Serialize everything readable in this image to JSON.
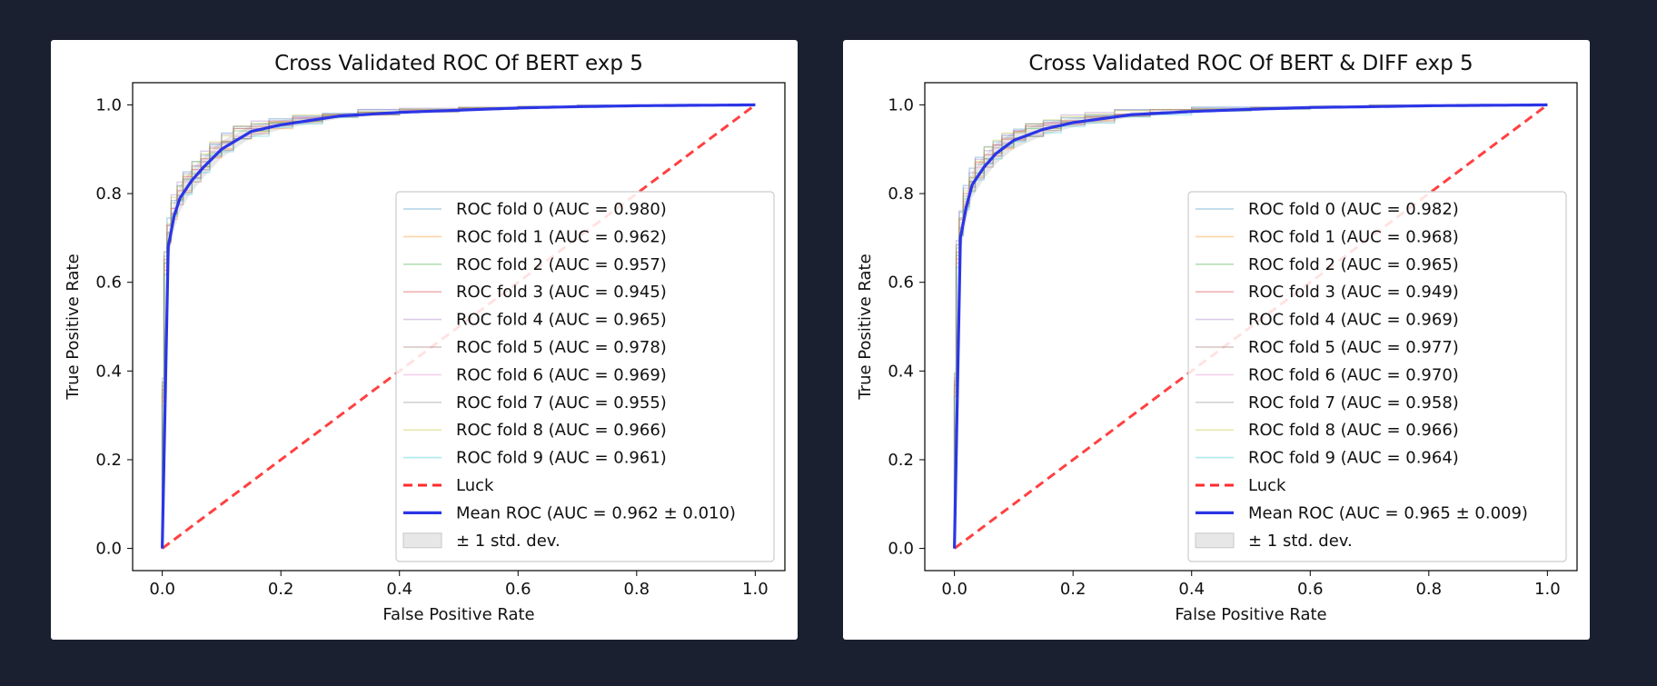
{
  "chart_data": [
    {
      "type": "line",
      "title": "Cross Validated ROC Of BERT exp 5",
      "xlabel": "False Positive Rate",
      "ylabel": "True Positive Rate",
      "xlim": [
        -0.05,
        1.05
      ],
      "ylim": [
        -0.05,
        1.05
      ],
      "xticks": [
        "0.0",
        "0.2",
        "0.4",
        "0.6",
        "0.8",
        "1.0"
      ],
      "yticks": [
        "0.0",
        "0.2",
        "0.4",
        "0.6",
        "0.8",
        "1.0"
      ],
      "legend_position": "lower-right",
      "grid": false,
      "series": [
        {
          "name": "ROC fold 0 (AUC = 0.980)",
          "color": "#1f77b4",
          "style": "fold"
        },
        {
          "name": "ROC fold 1 (AUC = 0.962)",
          "color": "#ff7f0e",
          "style": "fold"
        },
        {
          "name": "ROC fold 2 (AUC = 0.957)",
          "color": "#2ca02c",
          "style": "fold"
        },
        {
          "name": "ROC fold 3 (AUC = 0.945)",
          "color": "#d62728",
          "style": "fold"
        },
        {
          "name": "ROC fold 4 (AUC = 0.965)",
          "color": "#9467bd",
          "style": "fold"
        },
        {
          "name": "ROC fold 5 (AUC = 0.978)",
          "color": "#8c564b",
          "style": "fold"
        },
        {
          "name": "ROC fold 6 (AUC = 0.969)",
          "color": "#e377c2",
          "style": "fold"
        },
        {
          "name": "ROC fold 7 (AUC = 0.955)",
          "color": "#7f7f7f",
          "style": "fold"
        },
        {
          "name": "ROC fold 8 (AUC = 0.966)",
          "color": "#bcbd22",
          "style": "fold"
        },
        {
          "name": "ROC fold 9 (AUC = 0.961)",
          "color": "#17becf",
          "style": "fold"
        },
        {
          "name": "Luck",
          "color": "#ff2b2b",
          "style": "luck",
          "x": [
            0,
            1
          ],
          "y": [
            0,
            1
          ]
        },
        {
          "name": "Mean ROC (AUC = 0.962 ± 0.010)",
          "color": "#2b35e6",
          "style": "mean",
          "x": [
            0,
            0.005,
            0.01,
            0.02,
            0.03,
            0.05,
            0.07,
            0.1,
            0.15,
            0.2,
            0.3,
            0.4,
            0.5,
            0.6,
            0.7,
            0.8,
            0.9,
            1.0
          ],
          "y": [
            0,
            0.6,
            0.68,
            0.75,
            0.79,
            0.83,
            0.86,
            0.9,
            0.94,
            0.955,
            0.975,
            0.983,
            0.988,
            0.993,
            0.996,
            0.998,
            0.999,
            1.0
          ]
        },
        {
          "name": "± 1 std. dev.",
          "color": "#bbbbbb",
          "style": "band"
        }
      ]
    },
    {
      "type": "line",
      "title": "Cross Validated ROC Of BERT & DIFF exp 5",
      "xlabel": "False Positive Rate",
      "ylabel": "True Positive Rate",
      "xlim": [
        -0.05,
        1.05
      ],
      "ylim": [
        -0.05,
        1.05
      ],
      "xticks": [
        "0.0",
        "0.2",
        "0.4",
        "0.6",
        "0.8",
        "1.0"
      ],
      "yticks": [
        "0.0",
        "0.2",
        "0.4",
        "0.6",
        "0.8",
        "1.0"
      ],
      "legend_position": "lower-right",
      "grid": false,
      "series": [
        {
          "name": "ROC fold 0 (AUC = 0.982)",
          "color": "#1f77b4",
          "style": "fold"
        },
        {
          "name": "ROC fold 1 (AUC = 0.968)",
          "color": "#ff7f0e",
          "style": "fold"
        },
        {
          "name": "ROC fold 2 (AUC = 0.965)",
          "color": "#2ca02c",
          "style": "fold"
        },
        {
          "name": "ROC fold 3 (AUC = 0.949)",
          "color": "#d62728",
          "style": "fold"
        },
        {
          "name": "ROC fold 4 (AUC = 0.969)",
          "color": "#9467bd",
          "style": "fold"
        },
        {
          "name": "ROC fold 5 (AUC = 0.977)",
          "color": "#8c564b",
          "style": "fold"
        },
        {
          "name": "ROC fold 6 (AUC = 0.970)",
          "color": "#e377c2",
          "style": "fold"
        },
        {
          "name": "ROC fold 7 (AUC = 0.958)",
          "color": "#7f7f7f",
          "style": "fold"
        },
        {
          "name": "ROC fold 8 (AUC = 0.966)",
          "color": "#bcbd22",
          "style": "fold"
        },
        {
          "name": "ROC fold 9 (AUC = 0.964)",
          "color": "#17becf",
          "style": "fold"
        },
        {
          "name": "Luck",
          "color": "#ff2b2b",
          "style": "luck",
          "x": [
            0,
            1
          ],
          "y": [
            0,
            1
          ]
        },
        {
          "name": "Mean ROC (AUC = 0.965 ± 0.009)",
          "color": "#2b35e6",
          "style": "mean",
          "x": [
            0,
            0.005,
            0.01,
            0.02,
            0.03,
            0.05,
            0.07,
            0.1,
            0.15,
            0.2,
            0.3,
            0.4,
            0.5,
            0.6,
            0.7,
            0.8,
            0.9,
            1.0
          ],
          "y": [
            0,
            0.62,
            0.7,
            0.77,
            0.82,
            0.86,
            0.89,
            0.92,
            0.945,
            0.96,
            0.978,
            0.985,
            0.99,
            0.994,
            0.996,
            0.998,
            0.999,
            1.0
          ]
        },
        {
          "name": "± 1 std. dev.",
          "color": "#bbbbbb",
          "style": "band"
        }
      ]
    }
  ]
}
